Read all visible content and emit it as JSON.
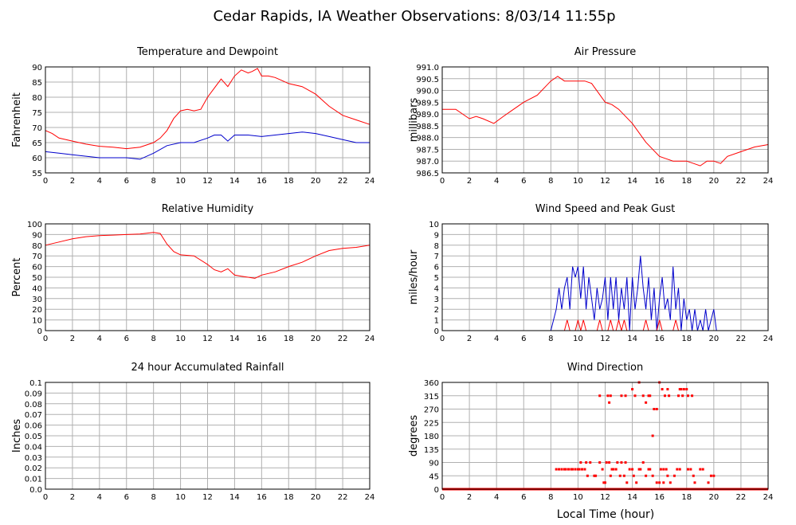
{
  "title": "Cedar Rapids, IA Weather Observations: 8/03/14 11:55p",
  "x_axis_title": "Local Time (hour)",
  "colors": {
    "red": "#ff0000",
    "blue": "#0000cc",
    "grid": "#b0b0b0"
  },
  "chart_data": [
    {
      "id": "temp",
      "type": "line",
      "title": "Temperature and Dewpoint",
      "ylabel": "Fahrenheit",
      "xlim": [
        0,
        24
      ],
      "ylim": [
        55,
        90
      ],
      "xticks": [
        0,
        2,
        4,
        6,
        8,
        10,
        12,
        14,
        16,
        18,
        20,
        22,
        24
      ],
      "yticks": [
        55,
        60,
        65,
        70,
        75,
        80,
        85,
        90
      ],
      "ytick_labels": [
        "55",
        "60",
        "65",
        "70",
        "75",
        "80",
        "85",
        "90"
      ],
      "grid": true,
      "series": [
        {
          "color": "#ff0000",
          "x": [
            0,
            0.5,
            1,
            2,
            3,
            4,
            5,
            6,
            7,
            8,
            8.5,
            9,
            9.5,
            10,
            10.5,
            11,
            11.5,
            12,
            12.5,
            13,
            13.5,
            14,
            14.5,
            15,
            15.3,
            15.7,
            16,
            16.5,
            17,
            17.5,
            18,
            19,
            20,
            20.5,
            21,
            22,
            23,
            24
          ],
          "y": [
            69,
            68,
            66.5,
            65.5,
            64.5,
            63.8,
            63.5,
            63,
            63.5,
            65,
            66.5,
            69,
            73,
            75.5,
            76,
            75.5,
            76,
            80,
            83,
            86,
            83.5,
            87,
            89,
            88,
            88.5,
            89.5,
            87,
            87,
            86.5,
            85.5,
            84.5,
            83.5,
            81,
            79,
            77,
            74,
            72.5,
            71
          ]
        },
        {
          "color": "#0000cc",
          "x": [
            0,
            1,
            2,
            3,
            4,
            5,
            6,
            7,
            8,
            9,
            10,
            11,
            12,
            12.5,
            13,
            13.5,
            14,
            15,
            16,
            17,
            18,
            19,
            20,
            21,
            22,
            23,
            24
          ],
          "y": [
            62,
            61.5,
            61,
            60.5,
            60,
            60,
            60,
            59.5,
            61.5,
            64,
            65,
            65,
            66.5,
            67.5,
            67.5,
            65.5,
            67.5,
            67.5,
            67,
            67.5,
            68,
            68.5,
            68,
            67,
            66,
            65,
            65
          ]
        }
      ]
    },
    {
      "id": "press",
      "type": "line",
      "title": "Air Pressure",
      "ylabel": "millibars",
      "xlim": [
        0,
        24
      ],
      "ylim": [
        986.5,
        991.0
      ],
      "xticks": [
        0,
        2,
        4,
        6,
        8,
        10,
        12,
        14,
        16,
        18,
        20,
        22,
        24
      ],
      "yticks": [
        986.5,
        987.0,
        987.5,
        988.0,
        988.5,
        989.0,
        989.5,
        990.0,
        990.5,
        991.0
      ],
      "ytick_labels": [
        "986.5",
        "987.0",
        "987.5",
        "988.0",
        "988.5",
        "989.0",
        "989.5",
        "990.0",
        "990.5",
        "991.0"
      ],
      "grid": true,
      "series": [
        {
          "color": "#ff0000",
          "x": [
            0,
            1,
            2,
            2.5,
            3,
            3.8,
            4.5,
            5,
            6,
            7,
            8,
            8.5,
            9,
            10,
            10.5,
            11,
            12,
            12.5,
            13,
            14,
            15,
            16,
            16.5,
            17,
            18,
            19,
            19.5,
            20,
            20.5,
            21,
            22,
            23,
            24
          ],
          "y": [
            989.2,
            989.2,
            988.8,
            988.9,
            988.8,
            988.6,
            988.9,
            989.1,
            989.5,
            989.8,
            990.4,
            990.6,
            990.4,
            990.4,
            990.4,
            990.3,
            989.5,
            989.4,
            989.2,
            988.6,
            987.8,
            987.2,
            987.1,
            987.0,
            987.0,
            986.8,
            987.0,
            987.0,
            986.9,
            987.2,
            987.4,
            987.6,
            987.7
          ]
        }
      ]
    },
    {
      "id": "rh",
      "type": "line",
      "title": "Relative Humidity",
      "ylabel": "Percent",
      "xlim": [
        0,
        24
      ],
      "ylim": [
        0,
        100
      ],
      "xticks": [
        0,
        2,
        4,
        6,
        8,
        10,
        12,
        14,
        16,
        18,
        20,
        22,
        24
      ],
      "yticks": [
        0,
        10,
        20,
        30,
        40,
        50,
        60,
        70,
        80,
        90,
        100
      ],
      "ytick_labels": [
        "0",
        "10",
        "20",
        "30",
        "40",
        "50",
        "60",
        "70",
        "80",
        "90",
        "100"
      ],
      "grid": true,
      "series": [
        {
          "color": "#ff0000",
          "x": [
            0,
            1,
            2,
            3,
            4,
            5,
            6,
            7,
            8,
            8.5,
            9,
            9.5,
            10,
            11,
            12,
            12.5,
            13,
            13.5,
            14,
            14.5,
            15,
            15.5,
            16,
            17,
            18,
            19,
            20,
            21,
            22,
            23,
            24
          ],
          "y": [
            80,
            83,
            86,
            88,
            89,
            89.5,
            90,
            90.5,
            92,
            91,
            81,
            74,
            71,
            70,
            62,
            57,
            55,
            58,
            52,
            51,
            50,
            49,
            52,
            55,
            60,
            64,
            70,
            75,
            77,
            78,
            80
          ]
        }
      ]
    },
    {
      "id": "wind",
      "type": "line",
      "title": "Wind Speed and Peak Gust",
      "ylabel": "miles/hour",
      "xlim": [
        0,
        24
      ],
      "ylim": [
        0,
        10
      ],
      "xticks": [
        0,
        2,
        4,
        6,
        8,
        10,
        12,
        14,
        16,
        18,
        20,
        22,
        24
      ],
      "yticks": [
        0,
        1,
        2,
        3,
        4,
        5,
        6,
        7,
        8,
        9,
        10
      ],
      "ytick_labels": [
        "0",
        "1",
        "2",
        "3",
        "4",
        "5",
        "6",
        "7",
        "8",
        "9",
        "10"
      ],
      "grid": true,
      "series": [
        {
          "color": "#0000cc",
          "x": [
            0,
            8.0,
            8.2,
            8.4,
            8.6,
            8.8,
            9.0,
            9.2,
            9.4,
            9.6,
            9.8,
            10.0,
            10.2,
            10.4,
            10.6,
            10.8,
            11.0,
            11.2,
            11.4,
            11.6,
            11.8,
            12.0,
            12.2,
            12.4,
            12.6,
            12.8,
            13.0,
            13.2,
            13.4,
            13.6,
            13.8,
            14.0,
            14.2,
            14.4,
            14.6,
            14.8,
            15.0,
            15.2,
            15.4,
            15.6,
            15.8,
            16.0,
            16.2,
            16.4,
            16.6,
            16.8,
            17.0,
            17.2,
            17.4,
            17.6,
            17.8,
            18.0,
            18.2,
            18.4,
            18.6,
            18.8,
            19.0,
            19.2,
            19.4,
            19.6,
            19.8,
            20.0,
            20.2,
            24
          ],
          "y": [
            0,
            0,
            1,
            2,
            4,
            2,
            4,
            5,
            2,
            6,
            5,
            6,
            3,
            6,
            2,
            5,
            3,
            1,
            4,
            2,
            3,
            5,
            1,
            5,
            2,
            5,
            1,
            4,
            2,
            5,
            0,
            5,
            2,
            4,
            7,
            4,
            2,
            5,
            1,
            4,
            0,
            3,
            5,
            2,
            3,
            1,
            6,
            2,
            4,
            0,
            3,
            1,
            2,
            0,
            2,
            0,
            1,
            0,
            2,
            0,
            1,
            2,
            0,
            0
          ]
        },
        {
          "color": "#ff0000",
          "x": [
            0,
            9.0,
            9.2,
            9.4,
            9.8,
            10.0,
            10.2,
            10.4,
            10.6,
            10.8,
            11.4,
            11.6,
            11.8,
            12.2,
            12.4,
            12.6,
            12.8,
            13.0,
            13.2,
            13.4,
            13.6,
            13.8,
            14.8,
            15.0,
            15.2,
            15.8,
            16.0,
            16.2,
            17.0,
            17.2,
            17.4,
            24
          ],
          "y": [
            0,
            0,
            1,
            0,
            0,
            1,
            0,
            1,
            0,
            0,
            0,
            1,
            0,
            0,
            1,
            0,
            0,
            1,
            0,
            1,
            0,
            0,
            0,
            1,
            0,
            0,
            1,
            0,
            0,
            1,
            0,
            0
          ]
        }
      ]
    },
    {
      "id": "rain",
      "type": "line",
      "title": "24 hour Accumulated Rainfall",
      "ylabel": "Inches",
      "xlim": [
        0,
        24
      ],
      "ylim": [
        0,
        0.1
      ],
      "xticks": [
        0,
        2,
        4,
        6,
        8,
        10,
        12,
        14,
        16,
        18,
        20,
        22,
        24
      ],
      "yticks": [
        0,
        0.01,
        0.02,
        0.03,
        0.04,
        0.05,
        0.06,
        0.07,
        0.08,
        0.09,
        0.1
      ],
      "ytick_labels": [
        "0.0",
        "0.01",
        "0.02",
        "0.03",
        "0.04",
        "0.05",
        "0.06",
        "0.07",
        "0.08",
        "0.09",
        "0.1"
      ],
      "grid": true,
      "series": [
        {
          "color": "#ff0000",
          "x": [
            0,
            24
          ],
          "y": [
            0,
            0
          ]
        }
      ]
    },
    {
      "id": "wdir",
      "type": "scatter",
      "title": "Wind Direction",
      "ylabel": "degrees",
      "xlim": [
        0,
        24
      ],
      "ylim": [
        0,
        360
      ],
      "xticks": [
        0,
        2,
        4,
        6,
        8,
        10,
        12,
        14,
        16,
        18,
        20,
        22,
        24
      ],
      "yticks": [
        0,
        45,
        90,
        135,
        180,
        225,
        270,
        315,
        360
      ],
      "ytick_labels": [
        "0",
        "45",
        "90",
        "135",
        "180",
        "225",
        "270",
        "315",
        "360"
      ],
      "grid": true,
      "series": [
        {
          "color": "#ff0000",
          "x": [
            8.2,
            8.4,
            8.6,
            8.8,
            9.0,
            9.1,
            9.3,
            9.5,
            9.6,
            9.8,
            10.0,
            10.1,
            10.3,
            10.5,
            10.7,
            10.9,
            10.2,
            10.6,
            11.2,
            11.3,
            11.5,
            11.6,
            11.8,
            11.9,
            12.0,
            12.1,
            12.3,
            12.4,
            12.5,
            12.6,
            12.8,
            12.9,
            13.1,
            13.2,
            13.4,
            13.5,
            13.6,
            13.8,
            14.0,
            14.1,
            14.3,
            14.5,
            14.6,
            14.8,
            15.0,
            15.2,
            15.3,
            15.5,
            15.6,
            15.8,
            16.0,
            16.1,
            16.3,
            16.5,
            16.6,
            16.8,
            17.0,
            17.1,
            17.3,
            17.5,
            17.6,
            17.8,
            18.0,
            18.1,
            18.3,
            18.5,
            18.6,
            18.8,
            19.0,
            19.2,
            19.4,
            19.6,
            19.8,
            20.0,
            20.2,
            11.6,
            12.2,
            12.4,
            13.2,
            13.5,
            14.2,
            14.8,
            15.0,
            15.2,
            15.6,
            16.0,
            16.2,
            16.6,
            17.4,
            17.6,
            17.8,
            18.4,
            12.3,
            14.5,
            14.0,
            15.3,
            15.5,
            15.8,
            16.3,
            16.4,
            16.7,
            17.5,
            17.7,
            18.0,
            18.1
          ],
          "y": [
            0,
            67,
            67,
            67,
            67,
            67,
            67,
            67,
            67,
            67,
            67,
            67,
            67,
            67,
            45,
            90,
            90,
            90,
            45,
            45,
            0,
            90,
            67,
            22,
            22,
            90,
            90,
            45,
            67,
            67,
            67,
            90,
            45,
            90,
            45,
            90,
            22,
            67,
            67,
            45,
            22,
            67,
            67,
            90,
            45,
            67,
            67,
            45,
            0,
            22,
            22,
            67,
            67,
            67,
            45,
            22,
            0,
            45,
            67,
            67,
            0,
            0,
            0,
            67,
            67,
            45,
            22,
            0,
            67,
            67,
            0,
            22,
            45,
            45,
            0,
            315,
            315,
            315,
            315,
            315,
            315,
            315,
            292,
            315,
            270,
            360,
            337,
            337,
            315,
            337,
            337,
            315,
            292,
            360,
            337,
            315,
            180,
            270,
            22,
            315,
            315,
            337,
            315,
            337,
            315
          ]
        },
        {
          "color": "#ff0000",
          "x": [
            0,
            8.2,
            20.2,
            24
          ],
          "y": [
            0,
            0,
            0,
            0
          ],
          "line": true
        }
      ]
    }
  ]
}
